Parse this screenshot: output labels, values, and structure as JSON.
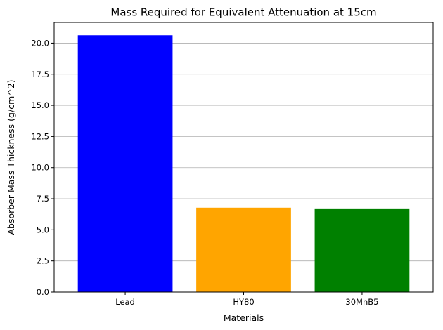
{
  "chart_data": {
    "type": "bar",
    "title": "Mass Required for Equivalent Attenuation at 15cm",
    "xlabel": "Materials",
    "ylabel": "Absorber Mass Thickness (g/cm^2)",
    "categories": [
      "Lead",
      "HY80",
      "30MnB5"
    ],
    "values": [
      20.63,
      6.78,
      6.72
    ],
    "colors": [
      "#0000ff",
      "#ffa500",
      "#008000"
    ],
    "ylim": [
      0,
      21.66
    ],
    "yticks": [
      "0.0",
      "2.5",
      "5.0",
      "7.5",
      "10.0",
      "12.5",
      "15.0",
      "17.5",
      "20.0"
    ],
    "grid": "y-major"
  }
}
